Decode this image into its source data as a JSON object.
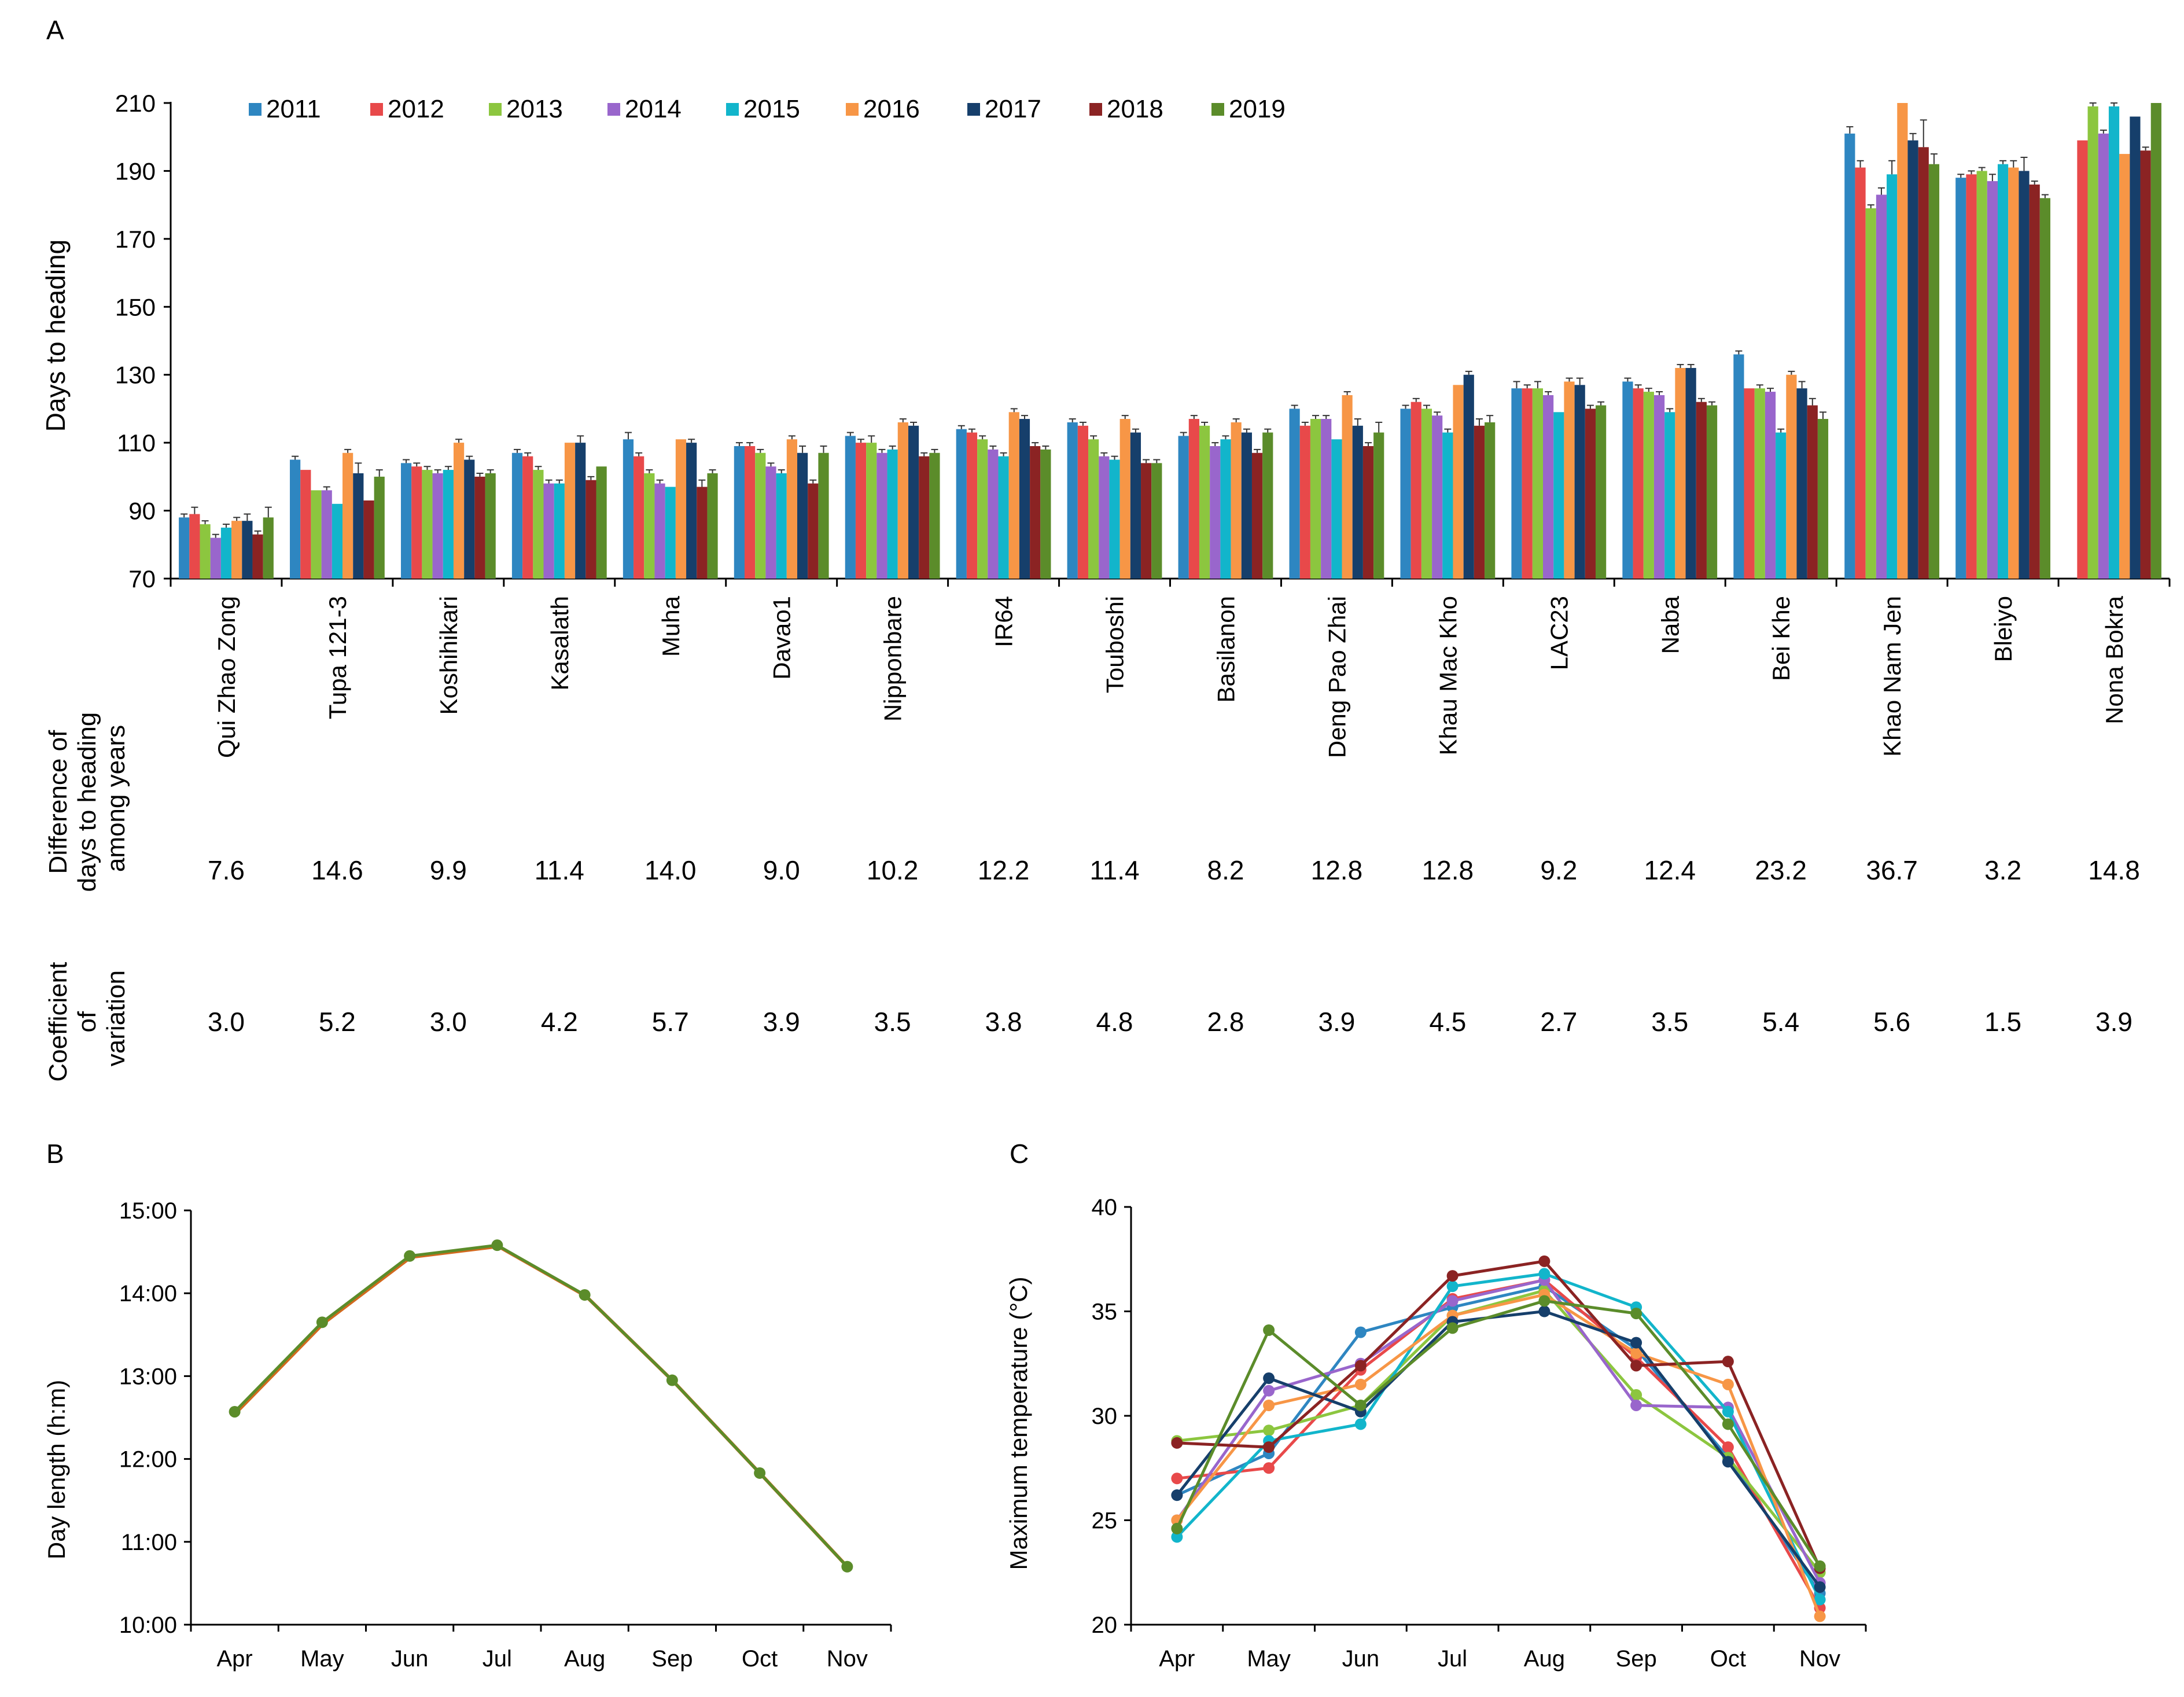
{
  "panel_labels": {
    "a": "A",
    "b": "B",
    "c": "C"
  },
  "colors": {
    "years": [
      "#2e86c1",
      "#e8494a",
      "#8cc63f",
      "#9966cc",
      "#12b5cb",
      "#f79646",
      "#163f6b",
      "#8b2323",
      "#5b8c2a"
    ],
    "daylength": "#5b8c2a",
    "daylength_under": "#d2691e",
    "temperature": [
      "#2e86c1",
      "#e8494a",
      "#8cc63f",
      "#9966cc",
      "#12b5cb",
      "#f79646",
      "#163f6b",
      "#8b2323",
      "#5b8c2a"
    ]
  },
  "table": {
    "row1_label": [
      "Difference of",
      "days to heading",
      "among years"
    ],
    "row2_label": [
      "Coefficient",
      "of",
      "variation"
    ],
    "difference": [
      "7.6",
      "14.6",
      "9.9",
      "11.4",
      "14.0",
      "9.0",
      "10.2",
      "12.2",
      "11.4",
      "8.2",
      "12.8",
      "12.8",
      "9.2",
      "12.4",
      "23.2",
      "36.7",
      "3.2",
      "14.8"
    ],
    "cv": [
      "3.0",
      "5.2",
      "3.0",
      "4.2",
      "5.7",
      "3.9",
      "3.5",
      "3.8",
      "4.8",
      "2.8",
      "3.9",
      "4.5",
      "2.7",
      "3.5",
      "5.4",
      "5.6",
      "1.5",
      "3.9"
    ]
  },
  "chart_data": [
    {
      "type": "bar",
      "panel": "A",
      "title": "",
      "xlabel": "",
      "ylabel": "Days to heading",
      "ylim": [
        70,
        210
      ],
      "yticks": [
        70,
        90,
        110,
        130,
        150,
        170,
        190,
        210
      ],
      "legend_position": "top-left",
      "categories": [
        "Qui Zhao Zong",
        "Tupa 121-3",
        "Koshihikari",
        "Kasalath",
        "Muha",
        "Davao1",
        "Nipponbare",
        "IR64",
        "Touboshi",
        "Basilanon",
        "Deng Pao Zhai",
        "Khau Mac Kho",
        "LAC23",
        "Naba",
        "Bei Khe",
        "Khao Nam Jen",
        "Bleiyo",
        "Nona Bokra"
      ],
      "series": [
        {
          "name": "2011",
          "values": [
            88,
            105,
            104,
            107,
            111,
            109,
            112,
            114,
            116,
            112,
            120,
            120,
            126,
            128,
            136,
            201,
            188,
            null
          ],
          "errors": [
            1,
            1,
            1,
            1,
            2,
            1,
            1,
            1,
            1,
            1,
            1,
            1,
            2,
            1,
            1,
            2,
            1,
            0
          ]
        },
        {
          "name": "2012",
          "values": [
            89,
            102,
            103,
            106,
            106,
            109,
            110,
            113,
            115,
            117,
            115,
            122,
            126,
            126,
            126,
            191,
            189,
            199
          ],
          "errors": [
            2,
            0,
            1,
            1,
            1,
            1,
            1,
            1,
            1,
            1,
            1,
            1,
            1,
            1,
            0,
            2,
            1,
            0
          ]
        },
        {
          "name": "2013",
          "values": [
            86,
            96,
            102,
            102,
            101,
            107,
            110,
            111,
            111,
            115,
            117,
            120,
            126,
            125,
            126,
            179,
            190,
            209
          ],
          "errors": [
            1,
            0,
            1,
            1,
            1,
            1,
            2,
            1,
            1,
            1,
            1,
            1,
            2,
            1,
            1,
            1,
            1,
            1
          ]
        },
        {
          "name": "2014",
          "values": [
            82,
            96,
            101,
            98,
            98,
            103,
            107,
            108,
            106,
            109,
            117,
            118,
            124,
            124,
            125,
            183,
            187,
            201
          ],
          "errors": [
            1,
            1,
            1,
            1,
            1,
            1,
            1,
            1,
            1,
            1,
            1,
            1,
            1,
            1,
            1,
            2,
            2,
            1
          ]
        },
        {
          "name": "2015",
          "values": [
            85,
            92,
            102,
            98,
            97,
            101,
            108,
            106,
            105,
            111,
            111,
            113,
            119,
            119,
            113,
            189,
            192,
            209
          ],
          "errors": [
            1,
            0,
            1,
            1,
            0,
            1,
            1,
            1,
            1,
            1,
            0,
            1,
            0,
            1,
            1,
            4,
            1,
            1
          ]
        },
        {
          "name": "2016",
          "values": [
            87,
            107,
            110,
            110,
            111,
            111,
            116,
            119,
            117,
            116,
            124,
            127,
            128,
            132,
            130,
            210,
            191,
            195
          ],
          "errors": [
            1,
            1,
            1,
            0,
            0,
            1,
            1,
            1,
            1,
            1,
            1,
            0,
            1,
            1,
            1,
            0,
            2,
            0
          ]
        },
        {
          "name": "2017",
          "values": [
            87,
            101,
            105,
            110,
            110,
            107,
            115,
            117,
            113,
            113,
            115,
            130,
            127,
            132,
            126,
            199,
            190,
            206
          ],
          "errors": [
            2,
            3,
            1,
            2,
            1,
            2,
            1,
            1,
            1,
            1,
            2,
            1,
            2,
            1,
            2,
            2,
            4,
            0
          ]
        },
        {
          "name": "2018",
          "values": [
            83,
            93,
            100,
            99,
            97,
            98,
            106,
            109,
            104,
            107,
            109,
            115,
            120,
            122,
            121,
            197,
            186,
            196
          ],
          "errors": [
            1,
            0,
            1,
            1,
            2,
            1,
            1,
            1,
            1,
            1,
            1,
            2,
            1,
            1,
            2,
            8,
            1,
            1
          ]
        },
        {
          "name": "2019",
          "values": [
            88,
            100,
            101,
            103,
            101,
            107,
            107,
            108,
            104,
            113,
            113,
            116,
            121,
            121,
            117,
            192,
            182,
            210
          ],
          "errors": [
            3,
            2,
            1,
            0,
            1,
            2,
            1,
            1,
            1,
            1,
            3,
            2,
            1,
            1,
            2,
            3,
            1,
            0
          ]
        }
      ]
    },
    {
      "type": "line",
      "panel": "B",
      "title": "",
      "xlabel": "",
      "ylabel": "Day length (h:m)",
      "categories": [
        "Apr",
        "May",
        "Jun",
        "Jul",
        "Aug",
        "Sep",
        "Oct",
        "Nov"
      ],
      "ylim": [
        10,
        15
      ],
      "ytick_labels": [
        "10:00",
        "11:00",
        "12:00",
        "13:00",
        "14:00",
        "15:00"
      ],
      "series": [
        {
          "name": "day length",
          "values": [
            12.57,
            13.65,
            14.45,
            14.58,
            13.98,
            12.95,
            11.83,
            10.7
          ]
        }
      ]
    },
    {
      "type": "line",
      "panel": "C",
      "title": "",
      "xlabel": "",
      "ylabel": "Maximum temperature (°C)",
      "categories": [
        "Apr",
        "May",
        "Jun",
        "Jul",
        "Aug",
        "Sep",
        "Oct",
        "Nov"
      ],
      "ylim": [
        20,
        40
      ],
      "yticks": [
        20,
        25,
        30,
        35,
        40
      ],
      "series": [
        {
          "name": "2011",
          "values": [
            26.2,
            28.2,
            34.0,
            35.2,
            36.2,
            33.2,
            28.0,
            21.5
          ]
        },
        {
          "name": "2012",
          "values": [
            27.0,
            27.5,
            32.2,
            35.6,
            36.5,
            32.8,
            28.5,
            20.8
          ]
        },
        {
          "name": "2013",
          "values": [
            28.8,
            29.3,
            30.5,
            34.8,
            36.0,
            31.0,
            28.0,
            22.5
          ]
        },
        {
          "name": "2014",
          "values": [
            25.0,
            31.2,
            32.5,
            35.5,
            36.5,
            30.5,
            30.4,
            22.0
          ]
        },
        {
          "name": "2015",
          "values": [
            24.2,
            28.8,
            29.6,
            36.2,
            36.8,
            35.2,
            30.2,
            21.2
          ]
        },
        {
          "name": "2016",
          "values": [
            25.0,
            30.5,
            31.5,
            34.8,
            35.8,
            33.0,
            31.5,
            20.4
          ]
        },
        {
          "name": "2017",
          "values": [
            26.2,
            31.8,
            30.2,
            34.5,
            35.0,
            33.5,
            27.8,
            21.8
          ]
        },
        {
          "name": "2018",
          "values": [
            28.7,
            28.5,
            32.4,
            36.7,
            37.4,
            32.4,
            32.6,
            22.7
          ]
        },
        {
          "name": "2019",
          "values": [
            24.6,
            34.1,
            30.5,
            34.2,
            35.5,
            34.9,
            29.6,
            22.8
          ]
        }
      ]
    }
  ]
}
